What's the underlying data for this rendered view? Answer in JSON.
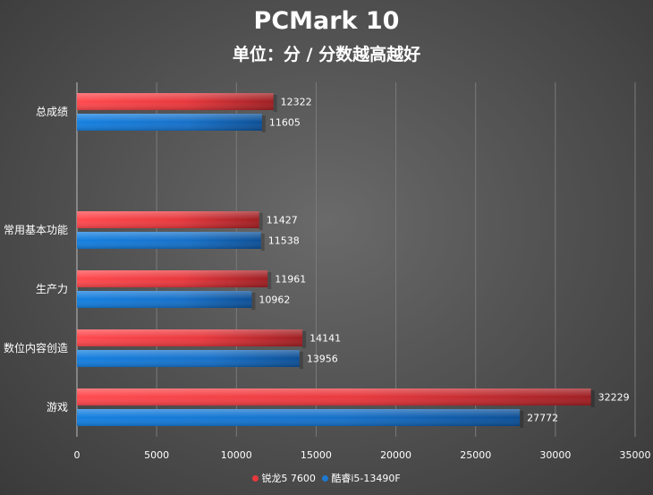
{
  "chart_data": {
    "type": "bar",
    "orientation": "horizontal",
    "title": "PCMark 10",
    "subtitle": "单位：分 / 分数越高越好",
    "categories": [
      "总成绩",
      "常用基本功能",
      "生产力",
      "数位内容创造",
      "游戏"
    ],
    "gap_after_first_category": true,
    "series": [
      {
        "name": "锐龙5 7600",
        "color": "#e8383d",
        "values": [
          12322,
          11427,
          11961,
          14141,
          32229
        ]
      },
      {
        "name": "酷睿i5-13490F",
        "color": "#1e78d0",
        "values": [
          11605,
          11538,
          10962,
          13956,
          27772
        ]
      }
    ],
    "xlim": [
      0,
      35000
    ],
    "xticks": [
      "0",
      "5000",
      "10000",
      "15000",
      "20000",
      "25000",
      "30000",
      "35000"
    ],
    "grid": true,
    "legend_position": "bottom"
  }
}
